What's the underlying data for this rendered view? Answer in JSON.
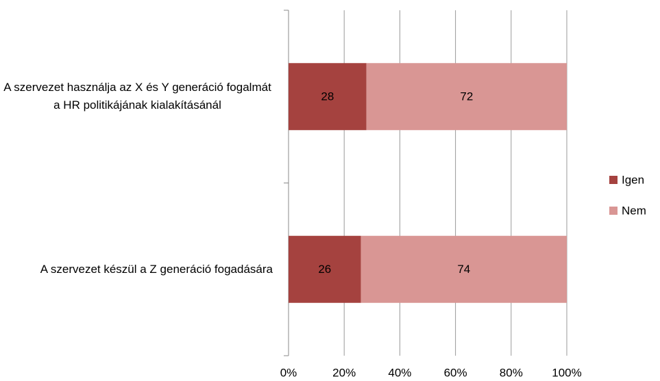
{
  "chart_data": {
    "type": "stacked_barh",
    "categories": [
      "A szervezet használja az X és Y generáció fogalmát a HR politikájának kialakításánál",
      "A szervezet készül a Z generáció fogadására"
    ],
    "series": [
      {
        "name": "Igen",
        "color": "#a5423f",
        "values": [
          28,
          26
        ]
      },
      {
        "name": "Nem",
        "color": "#d99694",
        "values": [
          72,
          74
        ]
      }
    ],
    "xlim": [
      0,
      100
    ],
    "xticks": [
      {
        "value": 0,
        "label": "0%"
      },
      {
        "value": 20,
        "label": "20%"
      },
      {
        "value": 40,
        "label": "40%"
      },
      {
        "value": 60,
        "label": "60%"
      },
      {
        "value": 80,
        "label": "80%"
      },
      {
        "value": 100,
        "label": "100%"
      }
    ],
    "grid": true,
    "legend": "right"
  }
}
